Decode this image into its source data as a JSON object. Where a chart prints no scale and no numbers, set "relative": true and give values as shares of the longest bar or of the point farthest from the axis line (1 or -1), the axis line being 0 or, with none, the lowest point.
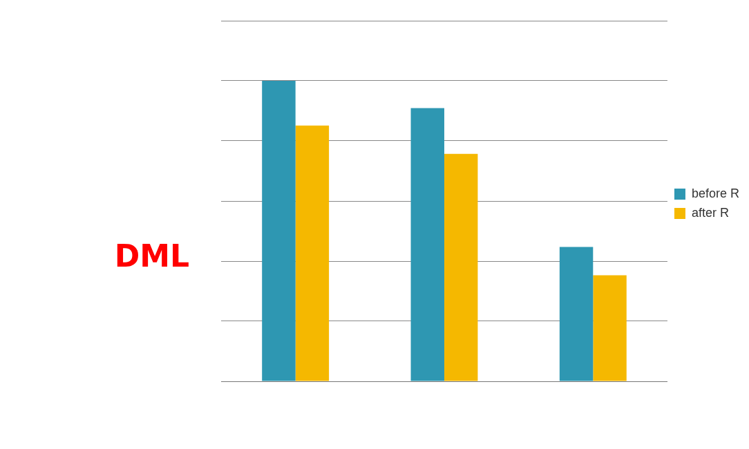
{
  "chart_data": {
    "type": "bar",
    "title": "DML",
    "relative": true,
    "categories": [
      null,
      null,
      null
    ],
    "series": [
      {
        "name": "before R",
        "color": "#2e97b2",
        "values": [
          1,
          0.909,
          0.447
        ]
      },
      {
        "name": "after R",
        "color": "#f5b800",
        "values": [
          0.851,
          0.757,
          0.353
        ]
      }
    ],
    "grid": "y",
    "legend": "right"
  }
}
